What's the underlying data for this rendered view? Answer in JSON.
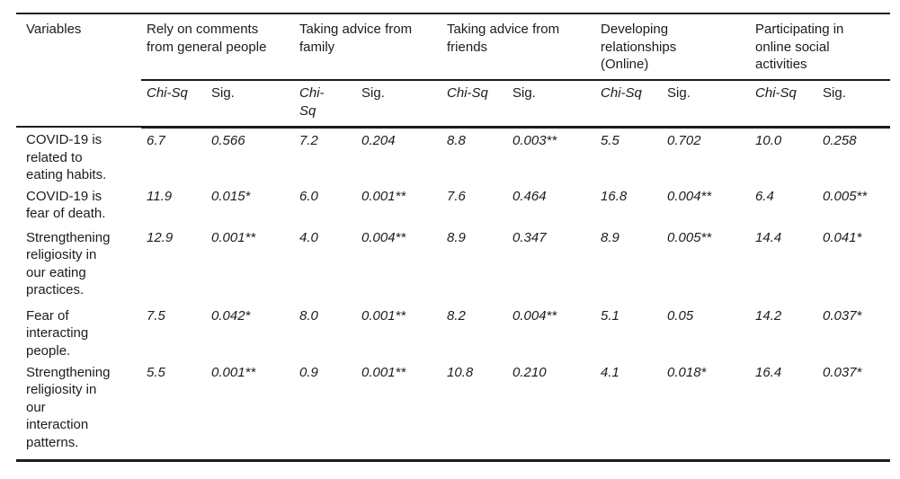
{
  "colors": {
    "background": "#ffffff",
    "text": "#1c1c1c",
    "rule": "#1c1c1c"
  },
  "table": {
    "variables_header": "Variables",
    "groups": [
      {
        "label": "Rely on comments\nfrom general people",
        "chi_label": "Chi-Sq",
        "sig_label": "Sig."
      },
      {
        "label": "Taking advice from\nfamily",
        "chi_label": "Chi-\nSq",
        "sig_label": "Sig."
      },
      {
        "label": "Taking advice from\nfriends",
        "chi_label": "Chi-Sq",
        "sig_label": "Sig."
      },
      {
        "label": "Developing\nrelationships\n(Online)",
        "chi_label": "Chi-Sq",
        "sig_label": "Sig."
      },
      {
        "label": "Participating in\nonline social\nactivities",
        "chi_label": "Chi-Sq",
        "sig_label": "Sig."
      }
    ],
    "rows": [
      {
        "variable": "COVID-19 is\nrelated to\neating habits.",
        "values": [
          "6.7",
          "0.566",
          "7.2",
          "0.204",
          "8.8",
          "0.003**",
          "5.5",
          "0.702",
          "10.0",
          "0.258"
        ]
      },
      {
        "variable": "COVID-19 is\nfear of death.",
        "values": [
          "11.9",
          "0.015*",
          "6.0",
          "0.001**",
          "7.6",
          "0.464",
          "16.8",
          "0.004**",
          "6.4",
          "0.005**"
        ]
      },
      {
        "variable": "Strengthening\nreligiosity in\nour eating\npractices.",
        "values": [
          "12.9",
          "0.001**",
          "4.0",
          "0.004**",
          "8.9",
          "0.347",
          "8.9",
          "0.005**",
          "14.4",
          "0.041*"
        ]
      },
      {
        "variable": "Fear of\ninteracting\npeople.",
        "values": [
          "7.5",
          "0.042*",
          "8.0",
          "0.001**",
          "8.2",
          "0.004**",
          "5.1",
          "0.05",
          "14.2",
          "0.037*"
        ]
      },
      {
        "variable": "Strengthening\nreligiosity in\nour\ninteraction\npatterns.",
        "values": [
          "5.5",
          "0.001**",
          "0.9",
          "0.001**",
          "10.8",
          "0.210",
          "4.1",
          "0.018*",
          "16.4",
          "0.037*"
        ]
      }
    ]
  }
}
